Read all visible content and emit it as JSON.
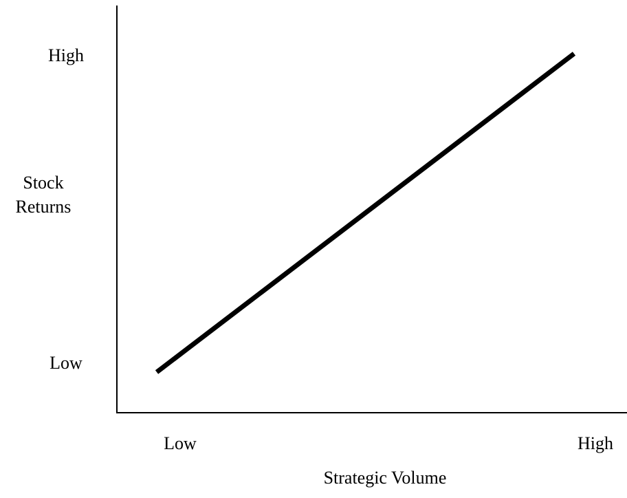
{
  "y_axis": {
    "label_lines": [
      "Stock",
      "Returns"
    ],
    "tick_labels": [
      "High",
      "Low"
    ]
  },
  "x_axis": {
    "label": "Strategic Volume",
    "tick_labels": [
      "Low",
      "High"
    ]
  }
}
